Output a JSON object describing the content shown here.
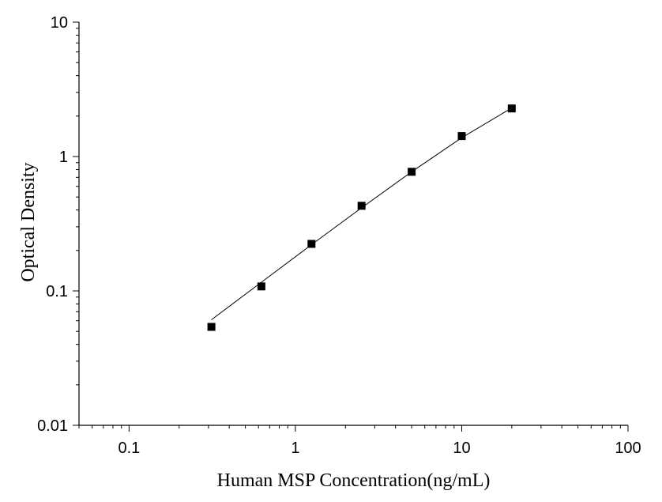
{
  "chart_data": {
    "type": "scatter",
    "title": "",
    "xlabel": "Human MSP Concentration(ng/mL)",
    "ylabel": "Optical Density",
    "xscale": "log",
    "yscale": "log",
    "xlim": [
      0.05,
      100
    ],
    "ylim": [
      0.01,
      10
    ],
    "grid": false,
    "legend": "none",
    "x_ticks": [
      {
        "value": 0.1,
        "label": "0.1"
      },
      {
        "value": 1,
        "label": "1"
      },
      {
        "value": 10,
        "label": "10"
      },
      {
        "value": 100,
        "label": "100"
      }
    ],
    "y_ticks": [
      {
        "value": 0.01,
        "label": "0.01"
      },
      {
        "value": 0.1,
        "label": "0.1"
      },
      {
        "value": 1,
        "label": "1"
      },
      {
        "value": 10,
        "label": "10"
      }
    ],
    "series": [
      {
        "marker": "square",
        "color": "#000000",
        "points": [
          {
            "x": 0.3125,
            "y": 0.054
          },
          {
            "x": 0.625,
            "y": 0.108
          },
          {
            "x": 1.25,
            "y": 0.224
          },
          {
            "x": 2.5,
            "y": 0.43
          },
          {
            "x": 5,
            "y": 0.77
          },
          {
            "x": 10,
            "y": 1.42
          },
          {
            "x": 20,
            "y": 2.28
          }
        ]
      }
    ],
    "fit_line": {
      "color": "#000000",
      "points": [
        {
          "x": 0.3125,
          "y": 0.061
        },
        {
          "x": 0.625,
          "y": 0.116
        },
        {
          "x": 1.25,
          "y": 0.221
        },
        {
          "x": 2.5,
          "y": 0.415
        },
        {
          "x": 5,
          "y": 0.77
        },
        {
          "x": 10,
          "y": 1.38
        },
        {
          "x": 20,
          "y": 2.3
        }
      ]
    }
  }
}
